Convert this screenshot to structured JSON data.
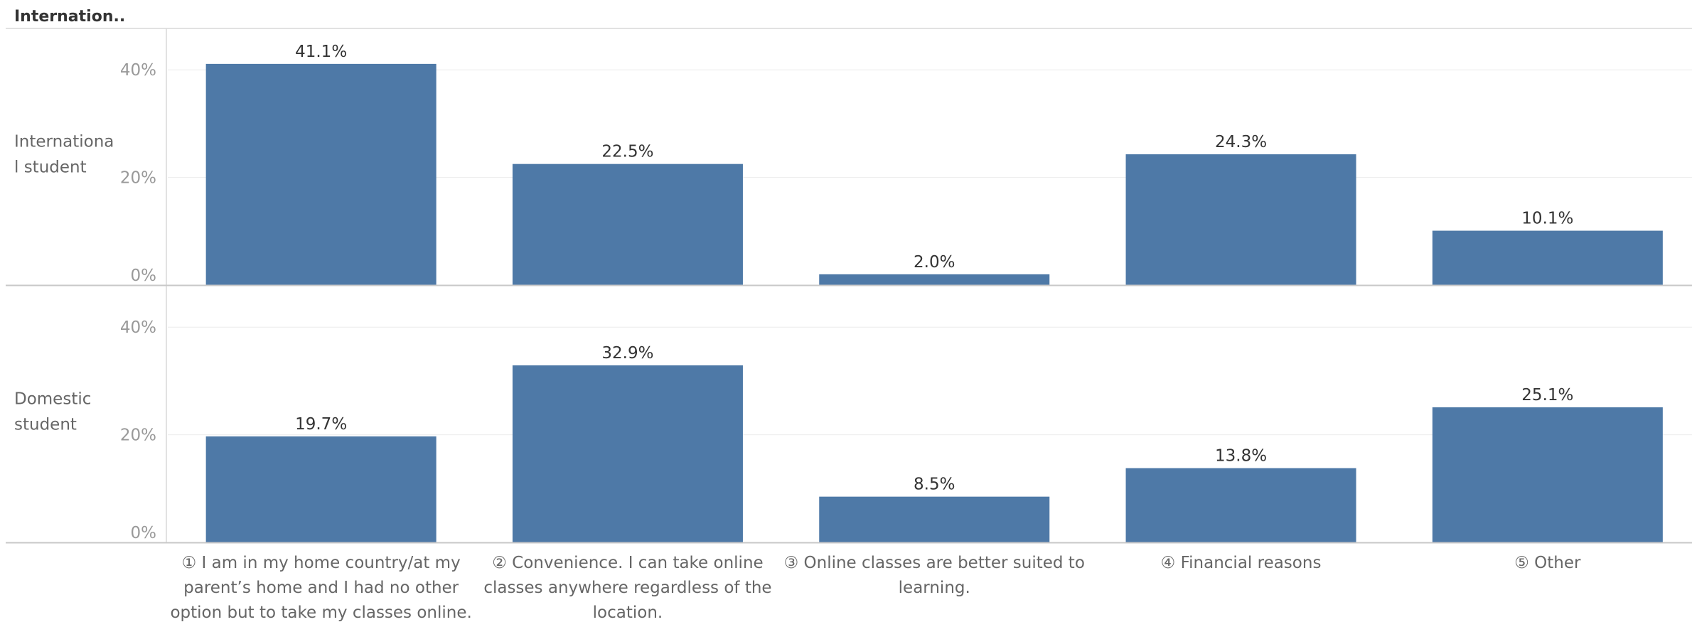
{
  "header": {
    "title": "Internation.."
  },
  "colors": {
    "bar": "#4e79a7",
    "grid": "#ececec",
    "axis": "#c8c8c8",
    "separator": "#d9d9d9"
  },
  "chart_data": {
    "type": "bar",
    "categories": [
      "① I am in my home country/at my parent’s home and I had no other option but to take my classes online.",
      "② Convenience. I can take online classes anywhere regardless of the location.",
      "③ Online classes are better suited to learning.",
      "④ Financial reasons",
      "⑤ Other"
    ],
    "category_lines": [
      [
        "① I am in my home country/at my",
        "parent’s home and I had no other",
        "option but to take my classes online."
      ],
      [
        "② Convenience. I can take online",
        "classes anywhere regardless of the",
        "location."
      ],
      [
        "③ Online classes are better suited to",
        "learning."
      ],
      [
        "④ Financial reasons"
      ],
      [
        "⑤ Other"
      ]
    ],
    "series": [
      {
        "name": "International student",
        "name_lines": [
          "Internationa",
          "l student"
        ],
        "values": [
          41.1,
          22.5,
          2.0,
          24.3,
          10.1
        ],
        "labels": [
          "41.1%",
          "22.5%",
          "2.0%",
          "24.3%",
          "10.1%"
        ]
      },
      {
        "name": "Domestic student",
        "name_lines": [
          "Domestic",
          "student"
        ],
        "values": [
          19.7,
          32.9,
          8.5,
          13.8,
          25.1
        ],
        "labels": [
          "19.7%",
          "32.9%",
          "8.5%",
          "13.8%",
          "25.1%"
        ]
      }
    ],
    "yticks": [
      0,
      20,
      40
    ],
    "ytick_labels": [
      "0%",
      "20%",
      "40%"
    ],
    "ylim": [
      0,
      47.7
    ],
    "grid": true,
    "legend": "none",
    "xlabel": "",
    "ylabel": ""
  }
}
